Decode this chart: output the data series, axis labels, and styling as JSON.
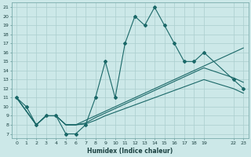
{
  "xlabel": "Humidex (Indice chaleur)",
  "bg_color": "#cce8e8",
  "grid_color": "#aacece",
  "line_color": "#1a6868",
  "xmin": -0.5,
  "xmax": 23.5,
  "ymin": 6.5,
  "ymax": 21.5,
  "line1_x": [
    0,
    1,
    2,
    3,
    4,
    5,
    6,
    7,
    8,
    9,
    10,
    11,
    12,
    13,
    14,
    15,
    16,
    17,
    18,
    19,
    22,
    23
  ],
  "line1_y": [
    11,
    10,
    8,
    9,
    9,
    7,
    7,
    8,
    11,
    15,
    11,
    17,
    20,
    19,
    21,
    19,
    17,
    15,
    15,
    16,
    13,
    12
  ],
  "line2_x": [
    0,
    1,
    2,
    3,
    4,
    5,
    6,
    7,
    8,
    9,
    10,
    11,
    12,
    13,
    14,
    15,
    16,
    17,
    18,
    19,
    22,
    23
  ],
  "line2_y": [
    11,
    9.5,
    8,
    9,
    9,
    8,
    8,
    8.5,
    9,
    9.5,
    10,
    10.5,
    11,
    11.5,
    12,
    12.5,
    13,
    13.5,
    14,
    14.5,
    16,
    16.5
  ],
  "line3_x": [
    0,
    1,
    2,
    3,
    4,
    5,
    6,
    7,
    8,
    9,
    10,
    11,
    12,
    13,
    14,
    15,
    16,
    17,
    18,
    19,
    22,
    23
  ],
  "line3_y": [
    11,
    9.5,
    8,
    9,
    9,
    8,
    8,
    8.2,
    8.8,
    9.3,
    9.8,
    10.3,
    10.8,
    11.3,
    11.8,
    12.3,
    12.8,
    13.3,
    13.8,
    14.3,
    13.2,
    12.7
  ],
  "line4_x": [
    0,
    1,
    2,
    3,
    4,
    5,
    6,
    7,
    8,
    9,
    10,
    11,
    12,
    13,
    14,
    15,
    16,
    17,
    18,
    19,
    22,
    23
  ],
  "line4_y": [
    11,
    9.5,
    8,
    9,
    9,
    8,
    8,
    8.1,
    8.5,
    9.0,
    9.4,
    9.8,
    10.2,
    10.6,
    11.0,
    11.4,
    11.8,
    12.2,
    12.6,
    13.0,
    12.0,
    11.5
  ],
  "yticks": [
    7,
    8,
    9,
    10,
    11,
    12,
    13,
    14,
    15,
    16,
    17,
    18,
    19,
    20,
    21
  ],
  "xtick_positions": [
    0,
    1,
    2,
    3,
    4,
    5,
    6,
    7,
    8,
    9,
    10,
    11,
    12,
    13,
    14,
    15,
    16,
    17,
    18,
    19,
    22,
    23
  ],
  "xtick_labels": [
    "0",
    "1",
    "2",
    "3",
    "4",
    "5",
    "6",
    "7",
    "8",
    "9",
    "10",
    "11",
    "12",
    "13",
    "14",
    "15",
    "16",
    "17",
    "18",
    "19",
    "22",
    "23"
  ]
}
